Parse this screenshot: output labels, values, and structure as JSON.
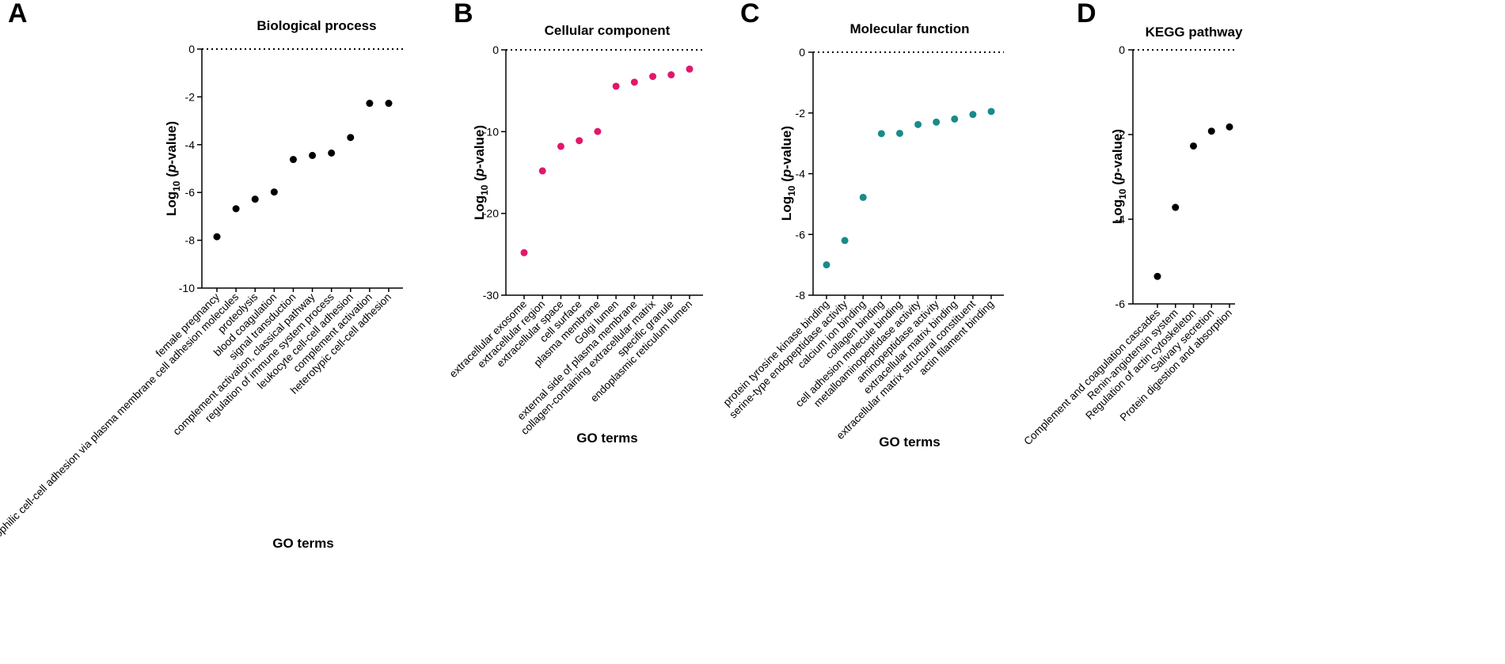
{
  "chart_data": [
    {
      "type": "scatter",
      "panel": "A",
      "title": "Biological process",
      "xlabel": "GO terms",
      "ylabel_base": "Log",
      "ylabel_sub": "10",
      "ylabel_open": " (",
      "ylabel_italic": "p",
      "ylabel_close": "-value)",
      "ylim": [
        -10,
        0
      ],
      "yticks": [
        0,
        -2,
        -4,
        -6,
        -8,
        -10
      ],
      "color": "#000000",
      "categories": [
        "female pregnancy",
        "heterophilic cell-cell adhesion via plasma membrane cell adhesion molecules",
        "proteolysis",
        "blood coagulation",
        "signal transduction",
        "complement activation, classical pathway",
        "regulation of immune system process",
        "leukocyte cell-cell adhesion",
        "complement activation",
        "heterotypic cell-cell adhesion"
      ],
      "values": [
        -7.85,
        -6.68,
        -6.28,
        -5.98,
        -4.62,
        -4.45,
        -4.35,
        -3.7,
        -2.27,
        -2.27
      ]
    },
    {
      "type": "scatter",
      "panel": "B",
      "title": "Cellular component",
      "xlabel": "GO terms",
      "ylabel_base": "Log",
      "ylabel_sub": "10",
      "ylabel_open": " (",
      "ylabel_italic": "p",
      "ylabel_close": "-value)",
      "ylim": [
        -30,
        0
      ],
      "yticks": [
        0,
        -10,
        -20,
        -30
      ],
      "color": "#e0186c",
      "categories": [
        "extracellular exosome",
        "extracellular region",
        "extracellular space",
        "cell surface",
        "plasma membrane",
        "Golgi lumen",
        "external side of plasma membrane",
        "collagen-containing extracellular matrix",
        "specific granule",
        "endoplasmic reticulum lumen"
      ],
      "values": [
        -24.8,
        -14.8,
        -11.8,
        -11.1,
        -9.98,
        -4.45,
        -3.95,
        -3.25,
        -3.05,
        -2.35
      ]
    },
    {
      "type": "scatter",
      "panel": "C",
      "title": "Molecular function",
      "xlabel": "GO terms",
      "ylabel_base": "Log",
      "ylabel_sub": "10",
      "ylabel_open": " (",
      "ylabel_italic": "p",
      "ylabel_close": "-value)",
      "ylim": [
        -8,
        0
      ],
      "yticks": [
        0,
        -2,
        -4,
        -6,
        -8
      ],
      "color": "#1a8a8a",
      "categories": [
        "protein tyrosine kinase binding",
        "serine-type endopeptidase activity",
        "calcium ion binding",
        "collagen binding",
        "cell adhesion molecule binding",
        "metalloaminopeptidase activity",
        "aminopeptidase activity",
        "extracellular matrix binding",
        "extracellular matrix structural constituent",
        "actin filament binding"
      ],
      "values": [
        -7.0,
        -6.2,
        -4.78,
        -2.68,
        -2.67,
        -2.38,
        -2.3,
        -2.2,
        -2.05,
        -1.95
      ]
    },
    {
      "type": "scatter",
      "panel": "D",
      "title": "KEGG pathway",
      "xlabel": "",
      "ylabel_base": "Log",
      "ylabel_sub": "10",
      "ylabel_open": " (",
      "ylabel_italic": "p",
      "ylabel_close": "-value)",
      "ylim": [
        -6,
        0
      ],
      "yticks": [
        0,
        -2,
        -4,
        -6
      ],
      "color": "#000000",
      "categories": [
        "Complement and coagulation cascades",
        "Renin-angiotensin system",
        "Regulation of actin cytoskeleton",
        "Salivary secretion",
        "Protein digestion and absorption"
      ],
      "values": [
        -5.35,
        -3.72,
        -2.27,
        -1.92,
        -1.82
      ]
    }
  ]
}
